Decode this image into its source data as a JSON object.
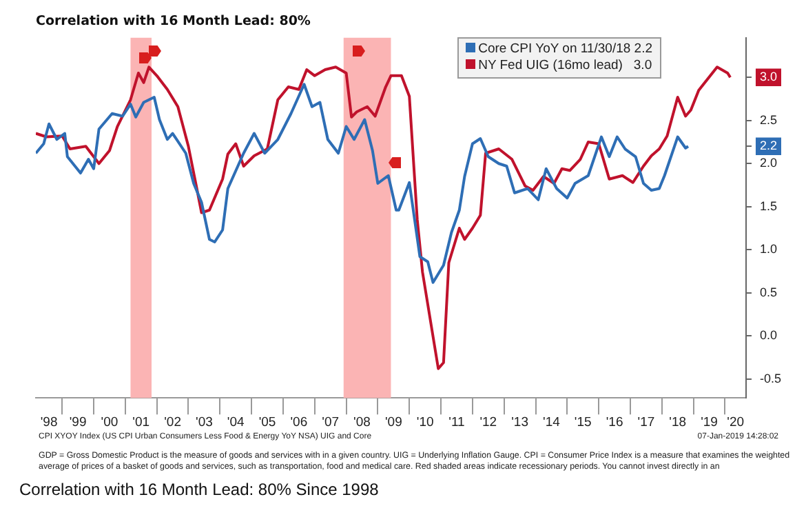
{
  "chart_data": {
    "type": "line",
    "title": "Correlation with 16 Month Lead: 80%",
    "xlim": [
      "1998-03",
      "2020-09"
    ],
    "xticks": [
      {
        "value": "1998-08",
        "label": "'98"
      },
      {
        "value": "1999",
        "label": null
      },
      {
        "value": "1999-07",
        "label": "'99"
      },
      {
        "value": "2000",
        "label": null
      },
      {
        "value": "2000-07",
        "label": "'00"
      },
      {
        "value": "2001",
        "label": null
      },
      {
        "value": "2001-07",
        "label": "'01"
      },
      {
        "value": "2002",
        "label": null
      },
      {
        "value": "2002-07",
        "label": "'02"
      },
      {
        "value": "2003",
        "label": null
      },
      {
        "value": "2003-07",
        "label": "'03"
      },
      {
        "value": "2004",
        "label": null
      },
      {
        "value": "2004-07",
        "label": "'04"
      },
      {
        "value": "2005",
        "label": null
      },
      {
        "value": "2005-07",
        "label": "'05"
      },
      {
        "value": "2006",
        "label": null
      },
      {
        "value": "2006-07",
        "label": "'06"
      },
      {
        "value": "2007",
        "label": null
      },
      {
        "value": "2007-07",
        "label": "'07"
      },
      {
        "value": "2008",
        "label": null
      },
      {
        "value": "2008-07",
        "label": "'08"
      },
      {
        "value": "2009",
        "label": null
      },
      {
        "value": "2009-07",
        "label": "'09"
      },
      {
        "value": "2010",
        "label": null
      },
      {
        "value": "2010-07",
        "label": "'10"
      },
      {
        "value": "2011",
        "label": null
      },
      {
        "value": "2011-07",
        "label": "'11"
      },
      {
        "value": "2012",
        "label": null
      },
      {
        "value": "2012-07",
        "label": "'12"
      },
      {
        "value": "2013",
        "label": null
      },
      {
        "value": "2013-07",
        "label": "'13"
      },
      {
        "value": "2014",
        "label": null
      },
      {
        "value": "2014-07",
        "label": "'14"
      },
      {
        "value": "2015",
        "label": null
      },
      {
        "value": "2015-07",
        "label": "'15"
      },
      {
        "value": "2016",
        "label": null
      },
      {
        "value": "2016-07",
        "label": "'16"
      },
      {
        "value": "2017",
        "label": null
      },
      {
        "value": "2017-07",
        "label": "'17"
      },
      {
        "value": "2018",
        "label": null
      },
      {
        "value": "2018-07",
        "label": "'18"
      },
      {
        "value": "2019",
        "label": null
      },
      {
        "value": "2019-07",
        "label": "'19"
      },
      {
        "value": "2020",
        "label": null
      },
      {
        "value": "2020-05",
        "label": "'20"
      }
    ],
    "ylim": [
      -0.72,
      3.46
    ],
    "yticks": [
      -0.5,
      {
        "value": 0,
        "label": "0.0"
      },
      0.5,
      {
        "value": 1,
        "label": "1.0"
      },
      1.5,
      {
        "value": 2,
        "label": "2.0"
      },
      2.2,
      2.5,
      {
        "value": 3,
        "label": "3.0"
      }
    ],
    "grid": false,
    "legend": "top right",
    "marker": "none",
    "bands": [
      {
        "axis": "x",
        "from": "2001-03",
        "to": "2001-11",
        "color": "#fbb4b4"
      },
      {
        "axis": "x",
        "from": "2007-12",
        "to": "2009-06",
        "color": "#fbb4b4"
      }
    ],
    "series": [
      {
        "name": "Core CPI YoY on 11/30/18 2.2",
        "color": "#2e6eb5",
        "x": [
          "1998-03",
          "1998-06",
          "1998-08",
          "1998-11",
          "1999-02",
          "1999-03",
          "1999-08",
          "1999-11",
          "2000-01",
          "2000-03",
          "2000-08",
          "2000-12",
          "2001-03",
          "2001-05",
          "2001-08",
          "2001-12",
          "2002-02",
          "2002-05",
          "2002-07",
          "2002-12",
          "2003-03",
          "2003-06",
          "2003-09",
          "2003-11",
          "2004-02",
          "2004-04",
          "2004-10",
          "2005-02",
          "2005-06",
          "2005-11",
          "2006-04",
          "2006-09",
          "2006-12",
          "2007-03",
          "2007-06",
          "2007-10",
          "2008-01",
          "2008-04",
          "2008-08",
          "2008-11",
          "2009-01",
          "2009-05",
          "2009-08",
          "2009-09",
          "2010-01",
          "2010-03",
          "2010-05",
          "2010-08",
          "2010-10",
          "2011-02",
          "2011-05",
          "2011-08",
          "2011-10",
          "2012-01",
          "2012-04",
          "2012-07",
          "2012-11",
          "2013-02",
          "2013-05",
          "2013-10",
          "2014-02",
          "2014-05",
          "2014-09",
          "2015-01",
          "2015-04",
          "2015-09",
          "2016-02",
          "2016-05",
          "2016-08",
          "2016-11",
          "2017-03",
          "2017-06",
          "2017-09",
          "2017-12",
          "2018-02",
          "2018-07",
          "2018-10",
          "2018-11"
        ],
        "values": [
          2.12,
          2.23,
          2.46,
          2.28,
          2.35,
          2.08,
          1.89,
          2.05,
          1.94,
          2.4,
          2.58,
          2.55,
          2.69,
          2.54,
          2.71,
          2.77,
          2.51,
          2.28,
          2.35,
          2.12,
          1.77,
          1.55,
          1.12,
          1.09,
          1.23,
          1.71,
          2.12,
          2.35,
          2.12,
          2.28,
          2.58,
          2.92,
          2.66,
          2.71,
          2.28,
          2.12,
          2.43,
          2.28,
          2.51,
          2.15,
          1.77,
          1.86,
          1.46,
          1.46,
          1.78,
          1.35,
          0.92,
          0.86,
          0.62,
          0.82,
          1.2,
          1.46,
          1.85,
          2.23,
          2.29,
          2.08,
          2.0,
          1.97,
          1.66,
          1.71,
          1.58,
          1.94,
          1.71,
          1.6,
          1.77,
          1.86,
          2.31,
          2.08,
          2.31,
          2.17,
          2.08,
          1.77,
          1.69,
          1.71,
          1.86,
          2.31,
          2.18,
          2.2
        ]
      },
      {
        "name": "NY Fed UIG (16mo lead)   3.0",
        "color": "#c0122c",
        "x": [
          "1998-03",
          "1998-07",
          "1999-01",
          "1999-04",
          "1999-10",
          "2000-03",
          "2000-07",
          "2000-10",
          "2001-03",
          "2001-06",
          "2001-08",
          "2001-10",
          "2002-01",
          "2002-05",
          "2002-09",
          "2003-01",
          "2003-04",
          "2003-06",
          "2003-09",
          "2004-02",
          "2004-04",
          "2004-07",
          "2004-10",
          "2005-02",
          "2005-07",
          "2005-11",
          "2006-03",
          "2006-07",
          "2006-10",
          "2007-01",
          "2007-05",
          "2007-09",
          "2008-01",
          "2008-03",
          "2008-05",
          "2008-09",
          "2008-12",
          "2009-04",
          "2009-06",
          "2009-10",
          "2010-01",
          "2010-04",
          "2010-06",
          "2010-12",
          "2011-02",
          "2011-04",
          "2011-08",
          "2011-10",
          "2012-01",
          "2012-04",
          "2012-06",
          "2012-11",
          "2013-04",
          "2013-09",
          "2013-12",
          "2014-04",
          "2014-08",
          "2014-11",
          "2015-02",
          "2015-06",
          "2015-09",
          "2016-01",
          "2016-05",
          "2016-10",
          "2017-02",
          "2017-06",
          "2017-09",
          "2017-12",
          "2018-03",
          "2018-07",
          "2018-10",
          "2018-12",
          "2019-03",
          "2019-10",
          "2020-02",
          "2020-03"
        ],
        "values": [
          2.35,
          2.31,
          2.32,
          2.17,
          2.2,
          2.0,
          2.15,
          2.43,
          2.74,
          3.05,
          2.94,
          3.12,
          3.02,
          2.86,
          2.66,
          2.2,
          1.74,
          1.43,
          1.46,
          1.82,
          2.11,
          2.23,
          1.97,
          2.09,
          2.17,
          2.74,
          2.89,
          2.86,
          3.09,
          3.02,
          3.09,
          3.12,
          3.05,
          2.54,
          2.6,
          2.66,
          2.55,
          2.89,
          3.02,
          3.02,
          2.78,
          1.35,
          0.74,
          -0.38,
          -0.31,
          0.85,
          1.25,
          1.12,
          1.25,
          1.4,
          2.12,
          2.17,
          2.05,
          1.74,
          1.69,
          1.85,
          1.77,
          1.94,
          1.92,
          2.05,
          2.25,
          2.23,
          1.82,
          1.86,
          1.78,
          1.97,
          2.09,
          2.17,
          2.32,
          2.77,
          2.55,
          2.62,
          2.85,
          3.12,
          3.05,
          3.0
        ]
      }
    ],
    "annotations": [
      "CPI XYOY Index (US CPI Urban Consumers Less Food & Energy YoY NSA) UIG and Core",
      "07-Jan-2019 14:28:02",
      "GDP = Gross Domestic Product is the measure of goods and services with in a given country. UIG = Underlying Inflation Gauge. CPI = Consumer Price Index is a measure that examines the weighted average of prices of a basket of goods and services, such as transportation, food and medical care. Red shaded areas indicate recessionary periods. You cannot invest directly in an",
      "Correlation with 16 Month Lead: 80% Since 1998"
    ]
  }
}
